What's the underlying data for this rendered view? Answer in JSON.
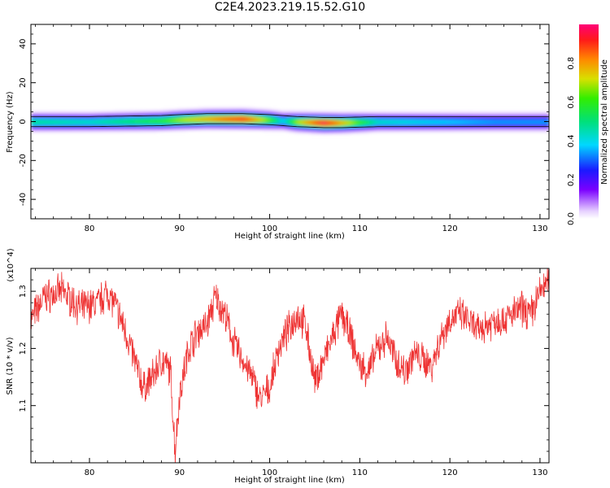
{
  "title": "C2E4.2023.219.15.52.G10",
  "chart_data": [
    {
      "type": "heatmap",
      "xlabel": "Height of straight line (km)",
      "ylabel": "Frequency (Hz)",
      "xlim": [
        73.5,
        131
      ],
      "ylim": [
        -50,
        50
      ],
      "xticks": [
        80,
        90,
        100,
        110,
        120,
        130
      ],
      "yticks": [
        -40,
        -20,
        0,
        20,
        40
      ],
      "colorbar": {
        "label": "Normalized spectral amplitude",
        "range": [
          0,
          1
        ],
        "ticks": [
          0.0,
          0.2,
          0.4,
          0.6,
          0.8
        ]
      },
      "ridge": {
        "x": [
          73.5,
          80,
          88,
          90,
          93,
          97,
          100,
          101.5,
          103,
          106,
          108,
          112,
          118,
          125,
          131
        ],
        "center_freq": [
          0,
          0,
          0.5,
          1,
          1.5,
          1.5,
          1,
          0.5,
          0,
          -0.5,
          -0.5,
          0,
          0,
          0,
          0
        ],
        "peak_amplitude": [
          0.5,
          0.45,
          0.6,
          0.7,
          0.8,
          0.95,
          0.65,
          0.4,
          0.7,
          1.0,
          0.8,
          0.45,
          0.4,
          0.35,
          0.35
        ]
      }
    },
    {
      "type": "line",
      "xlabel": "Height of straight line (km)",
      "ylabel": "SNR (10 * v/v)",
      "y_multiplier": "(x10^4)",
      "xlim": [
        73.5,
        131
      ],
      "ylim": [
        1.0,
        1.34
      ],
      "xticks": [
        80,
        90,
        100,
        110,
        120,
        130
      ],
      "yticks": [
        1.1,
        1.2,
        1.3
      ],
      "color": "#ee3333",
      "series": [
        {
          "x": [
            73.5,
            75,
            77,
            79,
            81,
            82,
            83,
            84,
            85,
            86,
            87,
            88,
            89,
            89.5,
            90,
            91,
            92,
            93,
            94,
            95,
            96,
            97,
            98,
            99,
            100,
            101,
            102,
            103,
            104,
            105,
            106,
            107,
            108,
            109,
            110,
            111,
            112,
            113,
            114,
            115,
            116,
            117,
            118,
            119,
            120,
            121,
            122,
            123,
            124,
            125,
            126,
            127,
            128,
            129,
            130,
            131
          ],
          "values": [
            1.25,
            1.29,
            1.3,
            1.27,
            1.28,
            1.3,
            1.27,
            1.23,
            1.18,
            1.13,
            1.15,
            1.18,
            1.16,
            1.02,
            1.12,
            1.2,
            1.23,
            1.24,
            1.29,
            1.26,
            1.21,
            1.18,
            1.15,
            1.11,
            1.13,
            1.2,
            1.23,
            1.26,
            1.24,
            1.14,
            1.18,
            1.22,
            1.26,
            1.22,
            1.17,
            1.16,
            1.2,
            1.22,
            1.18,
            1.16,
            1.19,
            1.18,
            1.17,
            1.22,
            1.25,
            1.26,
            1.25,
            1.23,
            1.24,
            1.25,
            1.25,
            1.26,
            1.27,
            1.26,
            1.3,
            1.32
          ]
        }
      ]
    }
  ]
}
